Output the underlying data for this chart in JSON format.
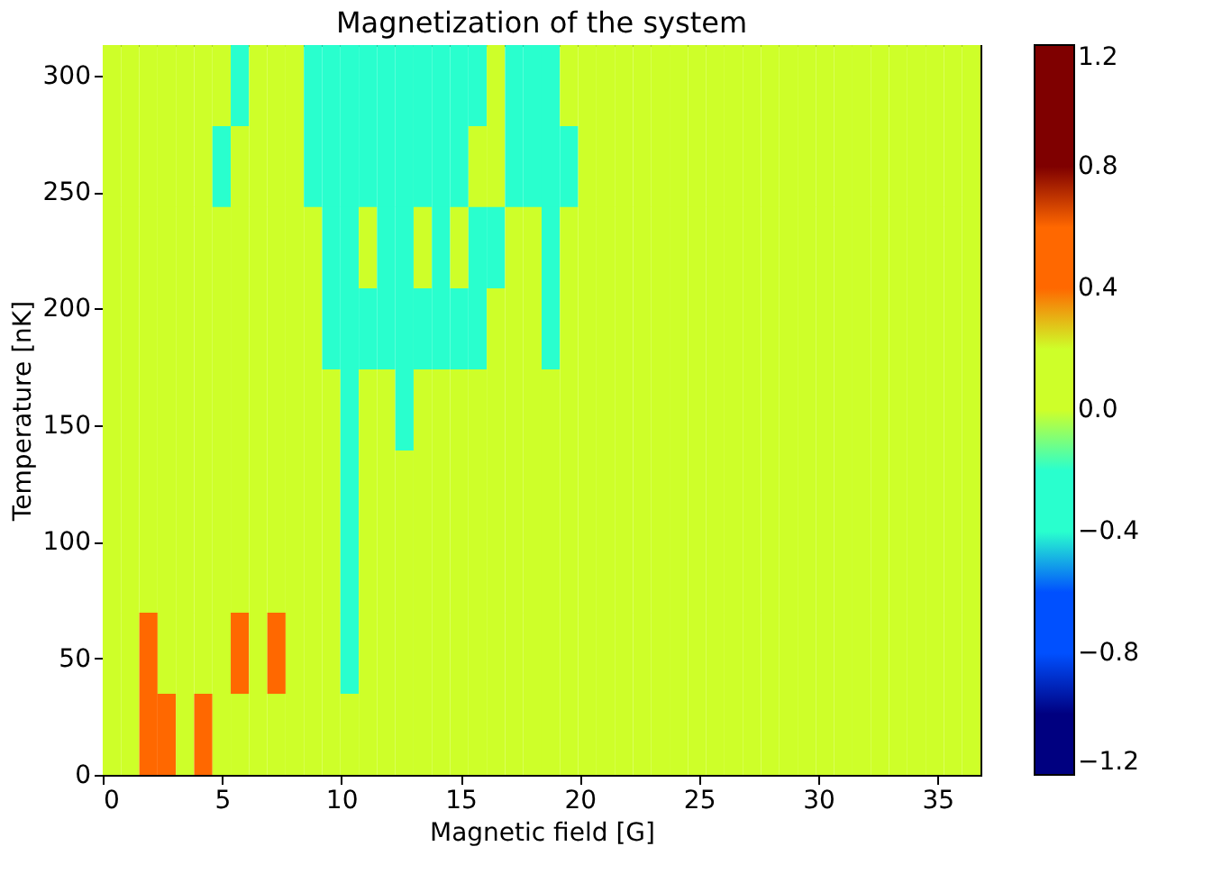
{
  "chart_data": {
    "type": "heatmap",
    "title": "Magnetization of the system",
    "xlabel": "Magnetic field [G]",
    "ylabel": "Temperature [nK]",
    "x": [
      0.383,
      1.15,
      1.917,
      2.683,
      3.45,
      4.217,
      4.983,
      5.75,
      6.517,
      7.283,
      8.05,
      8.817,
      9.583,
      10.35,
      11.117,
      11.883,
      12.65,
      13.417,
      14.183,
      14.95,
      15.717,
      16.483,
      17.25,
      18.017,
      18.783,
      19.55,
      20.317,
      21.083,
      21.85,
      22.617,
      23.383,
      24.15,
      24.917,
      25.683,
      26.45,
      27.217,
      27.983,
      28.75,
      29.517,
      30.283,
      31.05,
      31.817,
      32.583,
      33.35,
      34.117,
      34.883,
      35.65,
      36.417
    ],
    "y": [
      295.6,
      260.8,
      226.1,
      191.3,
      156.5,
      121.7,
      86.9,
      52.2,
      17.4
    ],
    "cells": [
      [
        0.2,
        0.2,
        0.2,
        0.2,
        0.2,
        0.2,
        0.2,
        -0.2,
        0.2,
        0.2,
        0.2,
        -0.2,
        -0.2,
        -0.2,
        -0.2,
        -0.2,
        -0.2,
        -0.2,
        -0.2,
        -0.2,
        -0.2,
        0.2,
        -0.2,
        -0.2,
        -0.2,
        0.2,
        0.2,
        0.2,
        0.2,
        0.2,
        0.2,
        0.2,
        0.2,
        0.2,
        0.2,
        0.2,
        0.2,
        0.2,
        0.2,
        0.2,
        0.2,
        0.2,
        0.2,
        0.2,
        0.2,
        0.2,
        0.2,
        0.2
      ],
      [
        0.2,
        0.2,
        0.2,
        0.2,
        0.2,
        0.2,
        -0.2,
        0.2,
        0.2,
        0.2,
        0.2,
        -0.2,
        -0.2,
        -0.2,
        -0.2,
        -0.2,
        -0.2,
        -0.2,
        -0.2,
        -0.2,
        0.2,
        0.2,
        -0.2,
        -0.2,
        -0.2,
        -0.2,
        0.2,
        0.2,
        0.2,
        0.2,
        0.2,
        0.2,
        0.2,
        0.2,
        0.2,
        0.2,
        0.2,
        0.2,
        0.2,
        0.2,
        0.2,
        0.2,
        0.2,
        0.2,
        0.2,
        0.2,
        0.2,
        0.2
      ],
      [
        0.2,
        0.2,
        0.2,
        0.2,
        0.2,
        0.2,
        0.2,
        0.2,
        0.2,
        0.2,
        0.2,
        0.2,
        -0.2,
        -0.2,
        0.2,
        -0.2,
        -0.2,
        0.2,
        -0.2,
        0.2,
        -0.2,
        -0.2,
        0.2,
        0.2,
        -0.2,
        0.2,
        0.2,
        0.2,
        0.2,
        0.2,
        0.2,
        0.2,
        0.2,
        0.2,
        0.2,
        0.2,
        0.2,
        0.2,
        0.2,
        0.2,
        0.2,
        0.2,
        0.2,
        0.2,
        0.2,
        0.2,
        0.2,
        0.2
      ],
      [
        0.2,
        0.2,
        0.2,
        0.2,
        0.2,
        0.2,
        0.2,
        0.2,
        0.2,
        0.2,
        0.2,
        0.2,
        -0.2,
        -0.2,
        -0.2,
        -0.2,
        -0.2,
        -0.2,
        -0.2,
        -0.2,
        -0.2,
        0.2,
        0.2,
        0.2,
        -0.2,
        0.2,
        0.2,
        0.2,
        0.2,
        0.2,
        0.2,
        0.2,
        0.2,
        0.2,
        0.2,
        0.2,
        0.2,
        0.2,
        0.2,
        0.2,
        0.2,
        0.2,
        0.2,
        0.2,
        0.2,
        0.2,
        0.2,
        0.2
      ],
      [
        0.2,
        0.2,
        0.2,
        0.2,
        0.2,
        0.2,
        0.2,
        0.2,
        0.2,
        0.2,
        0.2,
        0.2,
        0.2,
        -0.2,
        0.2,
        0.2,
        -0.2,
        0.2,
        0.2,
        0.2,
        0.2,
        0.2,
        0.2,
        0.2,
        0.2,
        0.2,
        0.2,
        0.2,
        0.2,
        0.2,
        0.2,
        0.2,
        0.2,
        0.2,
        0.2,
        0.2,
        0.2,
        0.2,
        0.2,
        0.2,
        0.2,
        0.2,
        0.2,
        0.2,
        0.2,
        0.2,
        0.2,
        0.2
      ],
      [
        0.2,
        0.2,
        0.2,
        0.2,
        0.2,
        0.2,
        0.2,
        0.2,
        0.2,
        0.2,
        0.2,
        0.2,
        0.2,
        -0.2,
        0.2,
        0.2,
        0.2,
        0.2,
        0.2,
        0.2,
        0.2,
        0.2,
        0.2,
        0.2,
        0.2,
        0.2,
        0.2,
        0.2,
        0.2,
        0.2,
        0.2,
        0.2,
        0.2,
        0.2,
        0.2,
        0.2,
        0.2,
        0.2,
        0.2,
        0.2,
        0.2,
        0.2,
        0.2,
        0.2,
        0.2,
        0.2,
        0.2,
        0.2
      ],
      [
        0.2,
        0.2,
        0.2,
        0.2,
        0.2,
        0.2,
        0.2,
        0.2,
        0.2,
        0.2,
        0.2,
        0.2,
        0.2,
        -0.2,
        0.2,
        0.2,
        0.2,
        0.2,
        0.2,
        0.2,
        0.2,
        0.2,
        0.2,
        0.2,
        0.2,
        0.2,
        0.2,
        0.2,
        0.2,
        0.2,
        0.2,
        0.2,
        0.2,
        0.2,
        0.2,
        0.2,
        0.2,
        0.2,
        0.2,
        0.2,
        0.2,
        0.2,
        0.2,
        0.2,
        0.2,
        0.2,
        0.2,
        0.2
      ],
      [
        0.2,
        0.2,
        0.6,
        0.2,
        0.2,
        0.2,
        0.2,
        0.6,
        0.2,
        0.6,
        0.2,
        0.2,
        0.2,
        -0.2,
        0.2,
        0.2,
        0.2,
        0.2,
        0.2,
        0.2,
        0.2,
        0.2,
        0.2,
        0.2,
        0.2,
        0.2,
        0.2,
        0.2,
        0.2,
        0.2,
        0.2,
        0.2,
        0.2,
        0.2,
        0.2,
        0.2,
        0.2,
        0.2,
        0.2,
        0.2,
        0.2,
        0.2,
        0.2,
        0.2,
        0.2,
        0.2,
        0.2,
        0.2
      ],
      [
        0.2,
        0.2,
        0.6,
        0.6,
        0.2,
        0.6,
        0.2,
        0.2,
        0.2,
        0.2,
        0.2,
        0.2,
        0.2,
        0.2,
        0.2,
        0.2,
        0.2,
        0.2,
        0.2,
        0.2,
        0.2,
        0.2,
        0.2,
        0.2,
        0.2,
        0.2,
        0.2,
        0.2,
        0.2,
        0.2,
        0.2,
        0.2,
        0.2,
        0.2,
        0.2,
        0.2,
        0.2,
        0.2,
        0.2,
        0.2,
        0.2,
        0.2,
        0.2,
        0.2,
        0.2,
        0.2,
        0.2,
        0.2
      ]
    ],
    "colors": [
      "#000080",
      "#0050ff",
      "#29ffce",
      "#ceff29",
      "#ff6800",
      "#7f0000"
    ],
    "clim": [
      -1.2,
      1.2
    ],
    "cticks": [
      {
        "value": -1.2,
        "label": "−1.2"
      },
      {
        "value": -0.8,
        "label": "−0.8"
      },
      {
        "value": -0.4,
        "label": "−0.4"
      },
      {
        "value": 0,
        "label": "0.0"
      },
      0.4,
      0.8,
      1.2
    ],
    "xlim": [
      0,
      36.8
    ],
    "xticks": [
      0,
      5,
      10,
      15,
      20,
      25,
      30,
      35
    ],
    "ylim": [
      0,
      313
    ],
    "yticks": [
      0,
      50,
      100,
      150,
      200,
      250,
      300
    ],
    "grid": false
  }
}
